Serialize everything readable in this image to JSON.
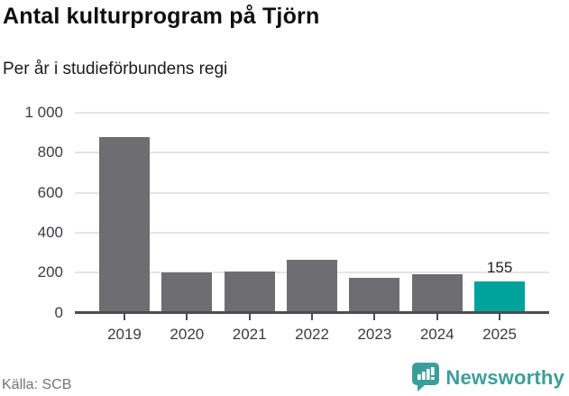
{
  "title": "Antal kulturprogram på Tjörn",
  "subtitle": "Per år i studieförbundens regi",
  "source": "Källa: SCB",
  "logo": {
    "brand": "Newsworthy",
    "icon": "bar-chart-speech-bubble-icon",
    "color": "#3c9e9b"
  },
  "colors": {
    "bar": "#6d6d72",
    "highlight": "#00a39b",
    "gridline": "#e4e4e4",
    "axis": "#4d4d4d",
    "text": "#3c3c42"
  },
  "chart_data": {
    "type": "bar",
    "title": "Antal kulturprogram på Tjörn",
    "subtitle": "Per år i studieförbundens regi",
    "categories": [
      "2019",
      "2020",
      "2021",
      "2022",
      "2023",
      "2024",
      "2025"
    ],
    "values": [
      880,
      200,
      205,
      265,
      172,
      190,
      155
    ],
    "highlight_index": 6,
    "bar_color": "#6d6d72",
    "highlight_color": "#00a39b",
    "annotation": {
      "index": 6,
      "text": "155"
    },
    "xlabel": "",
    "ylabel": "",
    "ylim": [
      0,
      1000
    ],
    "yticks": [
      0,
      200,
      400,
      600,
      800,
      1000
    ],
    "ytick_labels": [
      "0",
      "200",
      "400",
      "600",
      "800",
      "1 000"
    ],
    "grid": true,
    "legend": false,
    "source": "Källa: SCB"
  }
}
